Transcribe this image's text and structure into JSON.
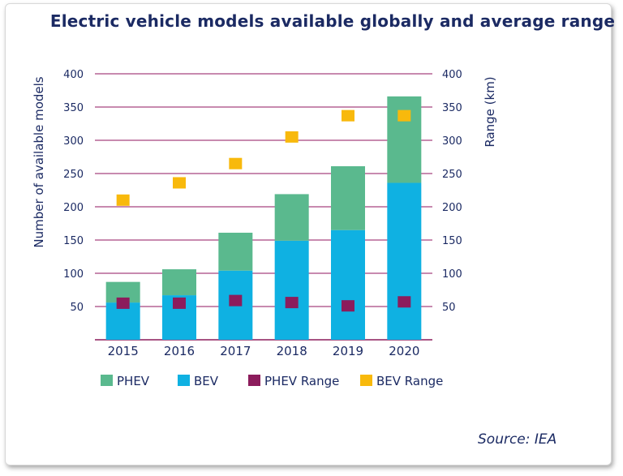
{
  "chart_data": {
    "type": "bar",
    "title": "Electric vehicle models available globally and average range",
    "categories": [
      "2015",
      "2016",
      "2017",
      "2018",
      "2019",
      "2020"
    ],
    "series": [
      {
        "name": "BEV",
        "kind": "stacked-bar",
        "axis": "left",
        "color": "#0fb1e2",
        "values": [
          56,
          67,
          104,
          149,
          165,
          236
        ]
      },
      {
        "name": "PHEV",
        "kind": "stacked-bar",
        "axis": "left",
        "color": "#5ab98e",
        "values": [
          31,
          39,
          57,
          70,
          96,
          130
        ]
      },
      {
        "name": "PHEV Range",
        "kind": "marker",
        "axis": "right",
        "color": "#8c1c5c",
        "values": [
          55,
          55,
          59,
          56,
          51,
          57
        ]
      },
      {
        "name": "BEV Range",
        "kind": "marker",
        "axis": "right",
        "color": "#f8b90c",
        "values": [
          210,
          236,
          265,
          305,
          337,
          337
        ]
      }
    ],
    "ylabel": "Number of available models",
    "y2label": "Range (km)",
    "ylim": [
      0,
      400
    ],
    "y2lim": [
      0,
      400
    ],
    "yticks": [
      50,
      100,
      150,
      200,
      250,
      300,
      350,
      400
    ],
    "legend_order": [
      "PHEV",
      "BEV",
      "PHEV Range",
      "BEV Range"
    ],
    "legend_position": "bottom",
    "grid": true
  },
  "source": "Source: IEA"
}
